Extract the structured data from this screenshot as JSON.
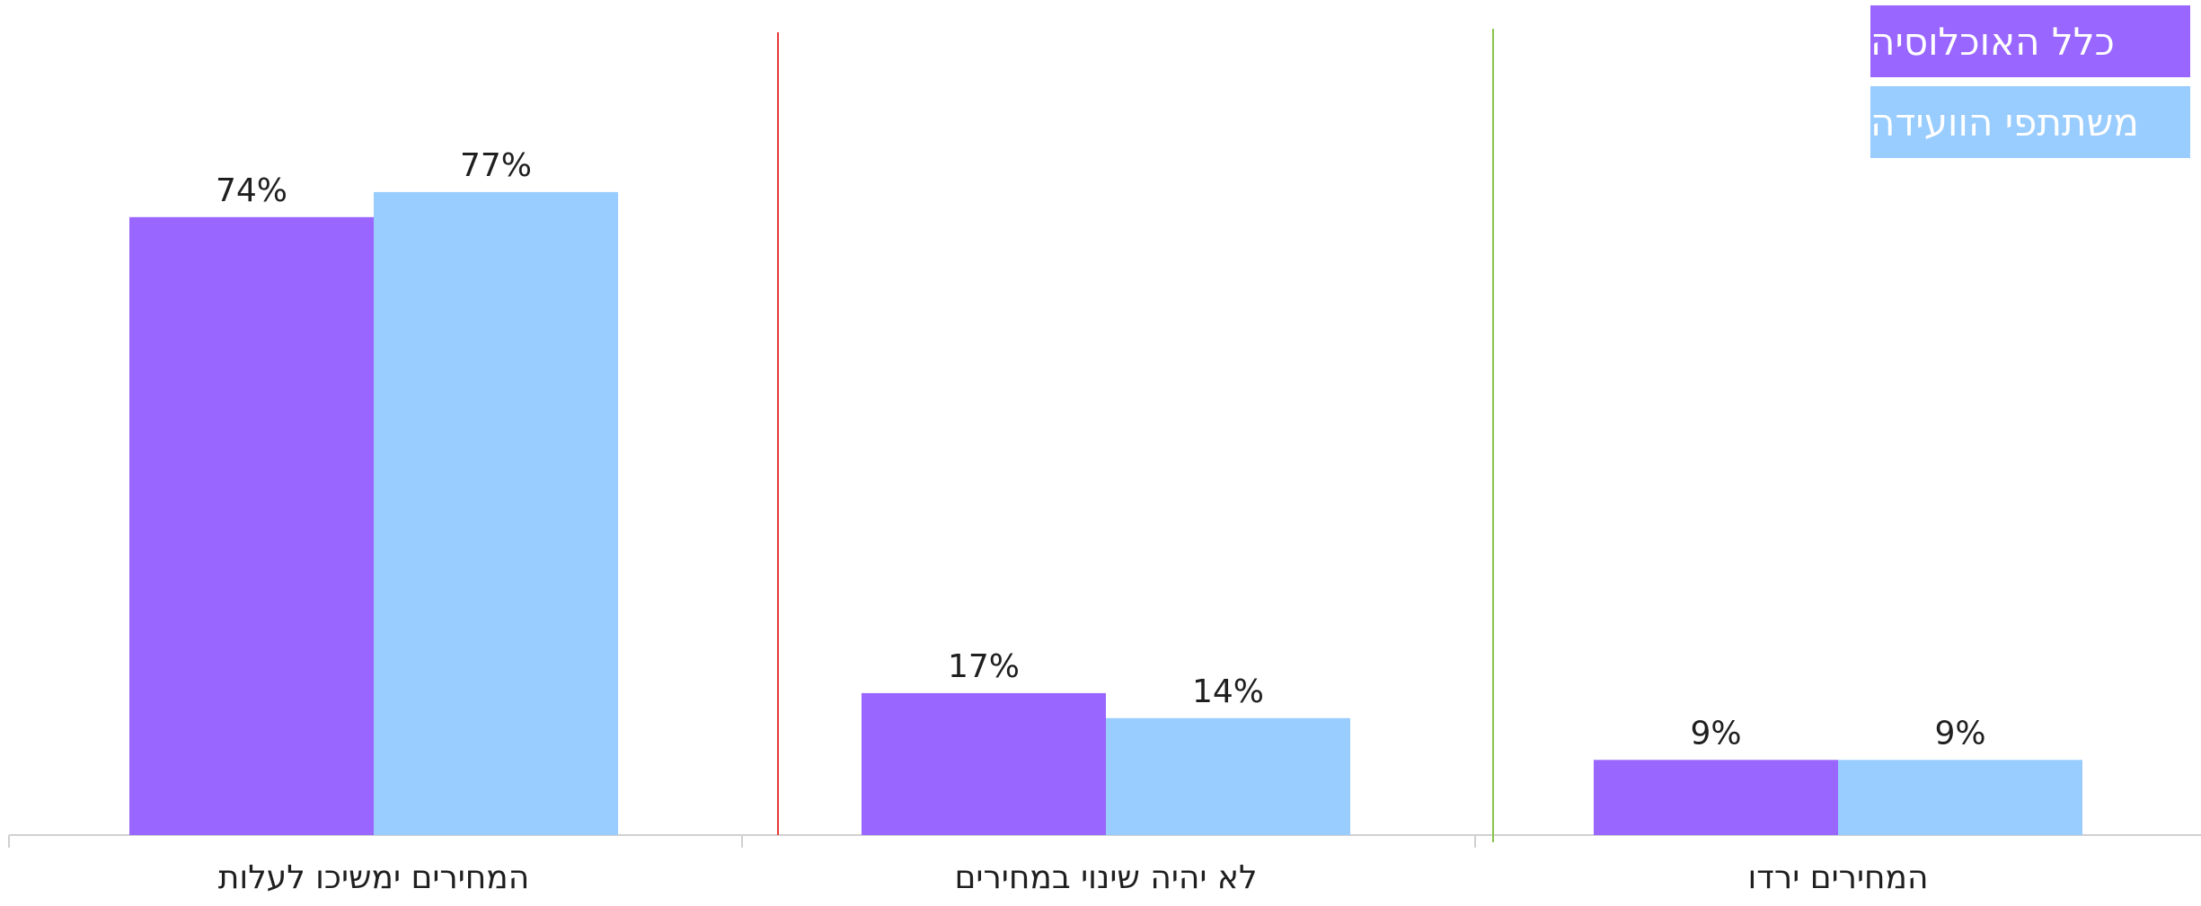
{
  "chart_data": {
    "type": "bar",
    "categories": [
      "המחירים ימשיכו לעלות",
      "לא יהיה שינוי במחירים",
      "המחירים ירדו"
    ],
    "series": [
      {
        "name": "כלל האוכלוסיה",
        "values": [
          74,
          17,
          9
        ],
        "labels": [
          "74%",
          "17%",
          "9%"
        ],
        "color": "#9966FF"
      },
      {
        "name": "משתתפי הוועידה",
        "values": [
          77,
          14,
          9
        ],
        "labels": [
          "77%",
          "14%",
          "9%"
        ],
        "color": "#99CCFF"
      }
    ],
    "ylim": [
      0,
      100
    ],
    "grid": false,
    "legend_position": "top-right",
    "separator_colors": [
      "#E53935",
      "#8BC34A"
    ],
    "axis_color": "#D0D0D0",
    "label_color": "#1F1F1F"
  }
}
